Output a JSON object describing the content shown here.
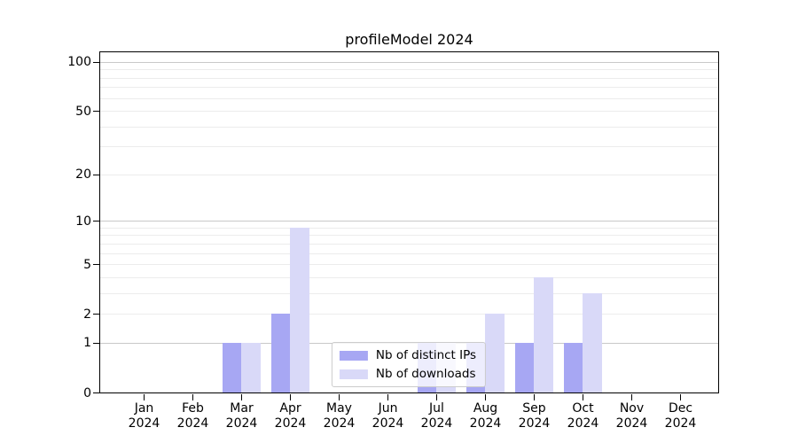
{
  "chart_data": {
    "type": "bar",
    "title": "profileModel 2024",
    "months": [
      "Jan",
      "Feb",
      "Mar",
      "Apr",
      "May",
      "Jun",
      "Jul",
      "Aug",
      "Sep",
      "Oct",
      "Nov",
      "Dec"
    ],
    "year": "2024",
    "series": [
      {
        "name": "Nb of distinct IPs",
        "color": "#a7a7f3",
        "values": [
          0,
          0,
          1,
          2,
          0,
          0,
          1,
          1,
          1,
          1,
          0,
          0
        ]
      },
      {
        "name": "Nb of downloads",
        "color": "#d9d9f8",
        "values": [
          0,
          0,
          1,
          9,
          0,
          0,
          1,
          2,
          4,
          3,
          0,
          0
        ]
      }
    ],
    "yscale": "log1p",
    "ylim": [
      0,
      114
    ],
    "yticks": [
      0,
      1,
      2,
      5,
      10,
      20,
      50,
      100
    ],
    "ytick_labels": [
      "0",
      "1",
      "2",
      "5",
      "10",
      "20",
      "50",
      "100"
    ],
    "grid": {
      "decade_values": [
        1,
        10,
        100
      ],
      "minor_values": [
        2,
        3,
        4,
        5,
        6,
        7,
        8,
        9,
        20,
        30,
        40,
        50,
        60,
        70,
        80,
        90
      ],
      "decade_color": "#c9c9c9",
      "minor_color": "#ececec"
    },
    "legend_position": "lower center",
    "xlabel": "",
    "ylabel": ""
  },
  "colors": {
    "background": "#ffffff",
    "spine": "#000000",
    "text": "#000000",
    "legend_border": "#cccccc"
  }
}
